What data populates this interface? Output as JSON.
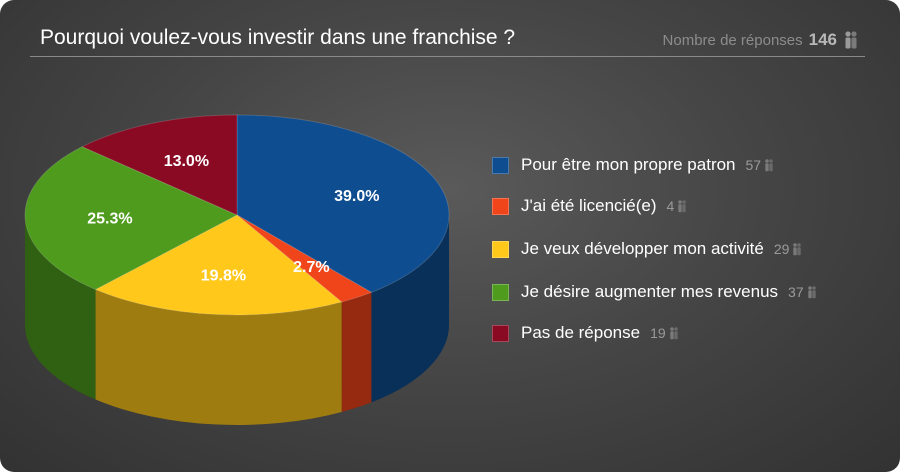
{
  "header": {
    "title": "Pourquoi voulez-vous investir dans une franchise ?",
    "responses_label": "Nombre de réponses",
    "responses_count": "146",
    "responses_icon": "people-icon"
  },
  "chart_data": {
    "type": "pie",
    "style": "3d",
    "title": "Pourquoi voulez-vous investir dans une franchise ?",
    "total_responses": 146,
    "legend_position": "right",
    "slices": [
      {
        "label": "Pour être mon propre patron",
        "count": 57,
        "count_text": "57",
        "percent": 39.0,
        "percent_label": "39.0%",
        "color": "#0e4d90"
      },
      {
        "label": "J'ai été licencié(e)",
        "count": 4,
        "count_text": "4",
        "percent": 2.7,
        "percent_label": "2.7%",
        "color": "#f0441a"
      },
      {
        "label": "Je veux développer mon activité",
        "count": 29,
        "count_text": "29",
        "percent": 19.8,
        "percent_label": "19.8%",
        "color": "#ffc81a"
      },
      {
        "label": "Je désire augmenter mes revenus",
        "count": 37,
        "count_text": "37",
        "percent": 25.3,
        "percent_label": "25.3%",
        "color": "#4e9b1d"
      },
      {
        "label": "Pas de réponse",
        "count": 19,
        "count_text": "19",
        "percent": 13.0,
        "percent_label": "13.0%",
        "color": "#8a0a24"
      }
    ]
  },
  "legend": {
    "items": [
      {
        "label": "Pour être mon propre patron",
        "count": "57",
        "color": "#0e4d90"
      },
      {
        "label": "J'ai été licencié(e)",
        "count": "4",
        "color": "#f0441a"
      },
      {
        "label": "Je veux développer mon activité",
        "count": "29",
        "color": "#ffc81a"
      },
      {
        "label": "Je désire augmenter mes revenus",
        "count": "37",
        "color": "#4e9b1d"
      },
      {
        "label": "Pas de réponse",
        "count": "19",
        "color": "#8a0a24"
      }
    ]
  }
}
